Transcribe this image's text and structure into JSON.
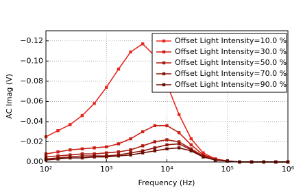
{
  "chart_data": {
    "type": "line",
    "x_label": "Frequency (Hz)",
    "y_label": "AC Imag (V)",
    "x_log": true,
    "grid": true,
    "legend_position": "upper-right",
    "x": [
      100,
      158,
      251,
      398,
      631,
      1000,
      1585,
      2512,
      3981,
      6310,
      10000,
      15849,
      25119,
      39811,
      63096,
      100000,
      158489,
      251189,
      398107,
      630957,
      1000000
    ],
    "series": [
      {
        "name": "Offset Light Intensity=10.0 %",
        "color": "#e8281e",
        "values": [
          -0.025,
          -0.031,
          -0.037,
          -0.046,
          -0.058,
          -0.074,
          -0.092,
          -0.109,
          -0.117,
          -0.105,
          -0.077,
          -0.047,
          -0.023,
          -0.009,
          -0.003,
          -0.001,
          0,
          0,
          0,
          0,
          0
        ]
      },
      {
        "name": "Offset Light Intensity=30.0 %",
        "color": "#cc2016",
        "values": [
          -0.008,
          -0.01,
          -0.012,
          -0.013,
          -0.014,
          -0.015,
          -0.018,
          -0.023,
          -0.03,
          -0.036,
          -0.036,
          -0.029,
          -0.017,
          -0.007,
          -0.003,
          -0.001,
          0,
          0,
          0,
          0,
          0
        ]
      },
      {
        "name": "Offset Light Intensity=50.0 %",
        "color": "#ac1a10",
        "values": [
          -0.005,
          -0.006,
          -0.007,
          -0.008,
          -0.008,
          -0.009,
          -0.01,
          -0.012,
          -0.016,
          -0.02,
          -0.022,
          -0.02,
          -0.013,
          -0.006,
          -0.002,
          -0.001,
          0,
          0,
          0,
          0,
          0
        ]
      },
      {
        "name": "Offset Light Intensity=70.0 %",
        "color": "#8c140a",
        "values": [
          -0.003,
          -0.004,
          -0.005,
          -0.006,
          -0.006,
          -0.006,
          -0.007,
          -0.009,
          -0.011,
          -0.014,
          -0.017,
          -0.018,
          -0.012,
          -0.005,
          -0.002,
          -0.001,
          0,
          0,
          0,
          0,
          0
        ]
      },
      {
        "name": "Offset Light Intensity=90.0 %",
        "color": "#6a0e06",
        "values": [
          -0.002,
          -0.003,
          -0.004,
          -0.004,
          -0.005,
          -0.005,
          -0.006,
          -0.007,
          -0.009,
          -0.011,
          -0.013,
          -0.014,
          -0.011,
          -0.005,
          -0.002,
          -0.001,
          0,
          0,
          0,
          0,
          0
        ]
      }
    ],
    "xlim": [
      100,
      1000000
    ],
    "xticks": [
      {
        "value": 100,
        "label": "10²"
      },
      {
        "value": 1000,
        "label": "10³"
      },
      {
        "value": 10000,
        "label": "10⁴"
      },
      {
        "value": 100000,
        "label": "10⁵"
      },
      {
        "value": 1000000,
        "label": "10⁶"
      }
    ],
    "ylim": [
      0,
      -0.13
    ],
    "yticks": [
      {
        "value": 0,
        "label": "0.00"
      },
      {
        "value": -0.02,
        "label": "−0.02"
      },
      {
        "value": -0.04,
        "label": "−0.04"
      },
      {
        "value": -0.06,
        "label": "−0.06"
      },
      {
        "value": -0.08,
        "label": "−0.08"
      },
      {
        "value": -0.1,
        "label": "−0.10"
      },
      {
        "value": -0.12,
        "label": "−0.12"
      }
    ]
  }
}
